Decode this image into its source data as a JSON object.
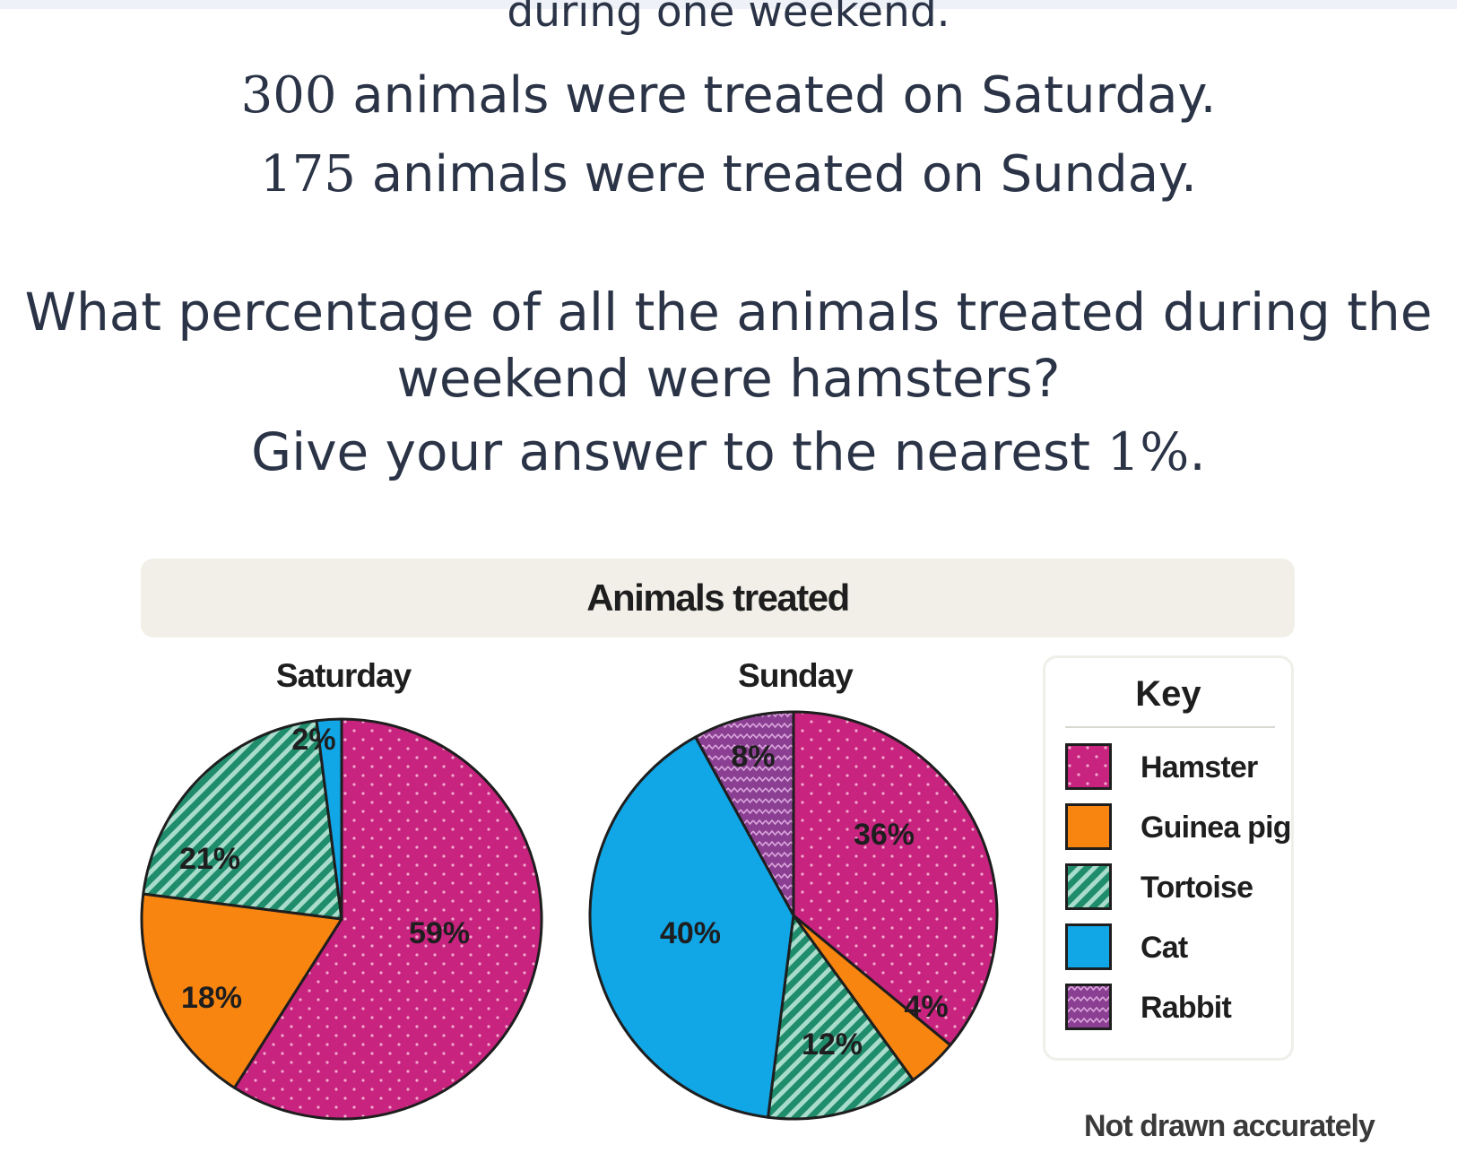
{
  "question": {
    "line0": "during one weekend.",
    "sat_count": "300",
    "sat_text": " animals were treated on Saturday.",
    "sun_count": "175",
    "sun_text": " animals were treated on Sunday.",
    "line3": "What percentage of all the animals treated during the",
    "line4": "weekend were hamsters?",
    "line5_text": "Give your answer to the nearest ",
    "line5_num": "1%",
    "line5_end": "."
  },
  "colors": {
    "hamster": "#c8237f",
    "guinea_pig": "#f7850f",
    "tortoise": "#1f8c6c",
    "cat": "#11a6e6",
    "rabbit": "#8b3f92",
    "banner": "#f1efe8"
  },
  "chart_data": [
    {
      "type": "pie",
      "title": "Animals treated",
      "subtitle": "Saturday",
      "slices": [
        {
          "name": "Hamster",
          "value": 59,
          "label": "59%"
        },
        {
          "name": "Guinea pig",
          "value": 18,
          "label": "18%"
        },
        {
          "name": "Tortoise",
          "value": 21,
          "label": "21%"
        },
        {
          "name": "Cat",
          "value": 2,
          "label": "2%"
        }
      ]
    },
    {
      "type": "pie",
      "title": "Animals treated",
      "subtitle": "Sunday",
      "slices": [
        {
          "name": "Hamster",
          "value": 36,
          "label": "36%"
        },
        {
          "name": "Guinea pig",
          "value": 4,
          "label": "4%"
        },
        {
          "name": "Tortoise",
          "value": 12,
          "label": "12%"
        },
        {
          "name": "Cat",
          "value": 40,
          "label": "40%"
        },
        {
          "name": "Rabbit",
          "value": 8,
          "label": "8%"
        }
      ]
    }
  ],
  "key": {
    "title": "Key",
    "items": [
      {
        "label": "Hamster",
        "pattern": "dots"
      },
      {
        "label": "Guinea pig",
        "pattern": "solid"
      },
      {
        "label": "Tortoise",
        "pattern": "diagonal-stripes"
      },
      {
        "label": "Cat",
        "pattern": "solid"
      },
      {
        "label": "Rabbit",
        "pattern": "zigzag"
      }
    ]
  },
  "banner_title": "Animals treated",
  "footnote": "Not drawn accurately"
}
